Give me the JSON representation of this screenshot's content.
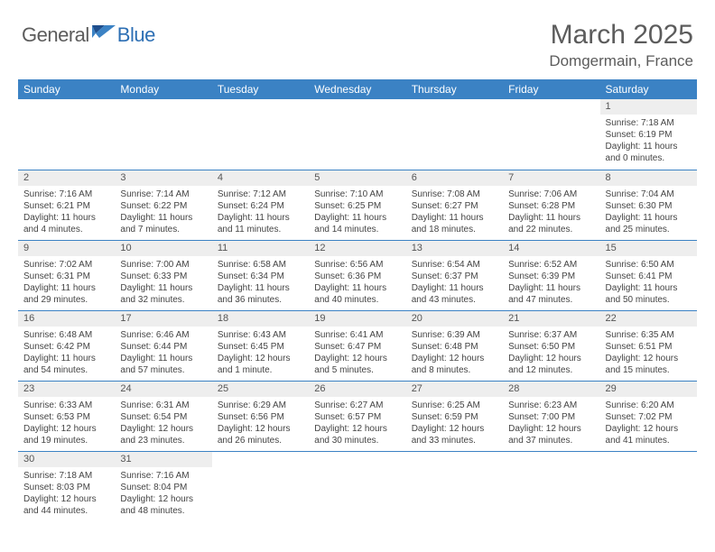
{
  "brand": {
    "part1": "General",
    "part2": "Blue"
  },
  "title": "March 2025",
  "location": "Domgermain, France",
  "colors": {
    "header_bg": "#3b82c4",
    "header_fg": "#ffffff",
    "daynum_bg": "#eeeeee",
    "border": "#3b82c4",
    "brand_gray": "#5c5c5c",
    "brand_blue": "#2d6fb4"
  },
  "weekdays": [
    "Sunday",
    "Monday",
    "Tuesday",
    "Wednesday",
    "Thursday",
    "Friday",
    "Saturday"
  ],
  "grid": [
    [
      {
        "n": "",
        "sr": "",
        "ss": "",
        "dl": ""
      },
      {
        "n": "",
        "sr": "",
        "ss": "",
        "dl": ""
      },
      {
        "n": "",
        "sr": "",
        "ss": "",
        "dl": ""
      },
      {
        "n": "",
        "sr": "",
        "ss": "",
        "dl": ""
      },
      {
        "n": "",
        "sr": "",
        "ss": "",
        "dl": ""
      },
      {
        "n": "",
        "sr": "",
        "ss": "",
        "dl": ""
      },
      {
        "n": "1",
        "sr": "Sunrise: 7:18 AM",
        "ss": "Sunset: 6:19 PM",
        "dl": "Daylight: 11 hours and 0 minutes."
      }
    ],
    [
      {
        "n": "2",
        "sr": "Sunrise: 7:16 AM",
        "ss": "Sunset: 6:21 PM",
        "dl": "Daylight: 11 hours and 4 minutes."
      },
      {
        "n": "3",
        "sr": "Sunrise: 7:14 AM",
        "ss": "Sunset: 6:22 PM",
        "dl": "Daylight: 11 hours and 7 minutes."
      },
      {
        "n": "4",
        "sr": "Sunrise: 7:12 AM",
        "ss": "Sunset: 6:24 PM",
        "dl": "Daylight: 11 hours and 11 minutes."
      },
      {
        "n": "5",
        "sr": "Sunrise: 7:10 AM",
        "ss": "Sunset: 6:25 PM",
        "dl": "Daylight: 11 hours and 14 minutes."
      },
      {
        "n": "6",
        "sr": "Sunrise: 7:08 AM",
        "ss": "Sunset: 6:27 PM",
        "dl": "Daylight: 11 hours and 18 minutes."
      },
      {
        "n": "7",
        "sr": "Sunrise: 7:06 AM",
        "ss": "Sunset: 6:28 PM",
        "dl": "Daylight: 11 hours and 22 minutes."
      },
      {
        "n": "8",
        "sr": "Sunrise: 7:04 AM",
        "ss": "Sunset: 6:30 PM",
        "dl": "Daylight: 11 hours and 25 minutes."
      }
    ],
    [
      {
        "n": "9",
        "sr": "Sunrise: 7:02 AM",
        "ss": "Sunset: 6:31 PM",
        "dl": "Daylight: 11 hours and 29 minutes."
      },
      {
        "n": "10",
        "sr": "Sunrise: 7:00 AM",
        "ss": "Sunset: 6:33 PM",
        "dl": "Daylight: 11 hours and 32 minutes."
      },
      {
        "n": "11",
        "sr": "Sunrise: 6:58 AM",
        "ss": "Sunset: 6:34 PM",
        "dl": "Daylight: 11 hours and 36 minutes."
      },
      {
        "n": "12",
        "sr": "Sunrise: 6:56 AM",
        "ss": "Sunset: 6:36 PM",
        "dl": "Daylight: 11 hours and 40 minutes."
      },
      {
        "n": "13",
        "sr": "Sunrise: 6:54 AM",
        "ss": "Sunset: 6:37 PM",
        "dl": "Daylight: 11 hours and 43 minutes."
      },
      {
        "n": "14",
        "sr": "Sunrise: 6:52 AM",
        "ss": "Sunset: 6:39 PM",
        "dl": "Daylight: 11 hours and 47 minutes."
      },
      {
        "n": "15",
        "sr": "Sunrise: 6:50 AM",
        "ss": "Sunset: 6:41 PM",
        "dl": "Daylight: 11 hours and 50 minutes."
      }
    ],
    [
      {
        "n": "16",
        "sr": "Sunrise: 6:48 AM",
        "ss": "Sunset: 6:42 PM",
        "dl": "Daylight: 11 hours and 54 minutes."
      },
      {
        "n": "17",
        "sr": "Sunrise: 6:46 AM",
        "ss": "Sunset: 6:44 PM",
        "dl": "Daylight: 11 hours and 57 minutes."
      },
      {
        "n": "18",
        "sr": "Sunrise: 6:43 AM",
        "ss": "Sunset: 6:45 PM",
        "dl": "Daylight: 12 hours and 1 minute."
      },
      {
        "n": "19",
        "sr": "Sunrise: 6:41 AM",
        "ss": "Sunset: 6:47 PM",
        "dl": "Daylight: 12 hours and 5 minutes."
      },
      {
        "n": "20",
        "sr": "Sunrise: 6:39 AM",
        "ss": "Sunset: 6:48 PM",
        "dl": "Daylight: 12 hours and 8 minutes."
      },
      {
        "n": "21",
        "sr": "Sunrise: 6:37 AM",
        "ss": "Sunset: 6:50 PM",
        "dl": "Daylight: 12 hours and 12 minutes."
      },
      {
        "n": "22",
        "sr": "Sunrise: 6:35 AM",
        "ss": "Sunset: 6:51 PM",
        "dl": "Daylight: 12 hours and 15 minutes."
      }
    ],
    [
      {
        "n": "23",
        "sr": "Sunrise: 6:33 AM",
        "ss": "Sunset: 6:53 PM",
        "dl": "Daylight: 12 hours and 19 minutes."
      },
      {
        "n": "24",
        "sr": "Sunrise: 6:31 AM",
        "ss": "Sunset: 6:54 PM",
        "dl": "Daylight: 12 hours and 23 minutes."
      },
      {
        "n": "25",
        "sr": "Sunrise: 6:29 AM",
        "ss": "Sunset: 6:56 PM",
        "dl": "Daylight: 12 hours and 26 minutes."
      },
      {
        "n": "26",
        "sr": "Sunrise: 6:27 AM",
        "ss": "Sunset: 6:57 PM",
        "dl": "Daylight: 12 hours and 30 minutes."
      },
      {
        "n": "27",
        "sr": "Sunrise: 6:25 AM",
        "ss": "Sunset: 6:59 PM",
        "dl": "Daylight: 12 hours and 33 minutes."
      },
      {
        "n": "28",
        "sr": "Sunrise: 6:23 AM",
        "ss": "Sunset: 7:00 PM",
        "dl": "Daylight: 12 hours and 37 minutes."
      },
      {
        "n": "29",
        "sr": "Sunrise: 6:20 AM",
        "ss": "Sunset: 7:02 PM",
        "dl": "Daylight: 12 hours and 41 minutes."
      }
    ],
    [
      {
        "n": "30",
        "sr": "Sunrise: 7:18 AM",
        "ss": "Sunset: 8:03 PM",
        "dl": "Daylight: 12 hours and 44 minutes."
      },
      {
        "n": "31",
        "sr": "Sunrise: 7:16 AM",
        "ss": "Sunset: 8:04 PM",
        "dl": "Daylight: 12 hours and 48 minutes."
      },
      {
        "n": "",
        "sr": "",
        "ss": "",
        "dl": ""
      },
      {
        "n": "",
        "sr": "",
        "ss": "",
        "dl": ""
      },
      {
        "n": "",
        "sr": "",
        "ss": "",
        "dl": ""
      },
      {
        "n": "",
        "sr": "",
        "ss": "",
        "dl": ""
      },
      {
        "n": "",
        "sr": "",
        "ss": "",
        "dl": ""
      }
    ]
  ]
}
